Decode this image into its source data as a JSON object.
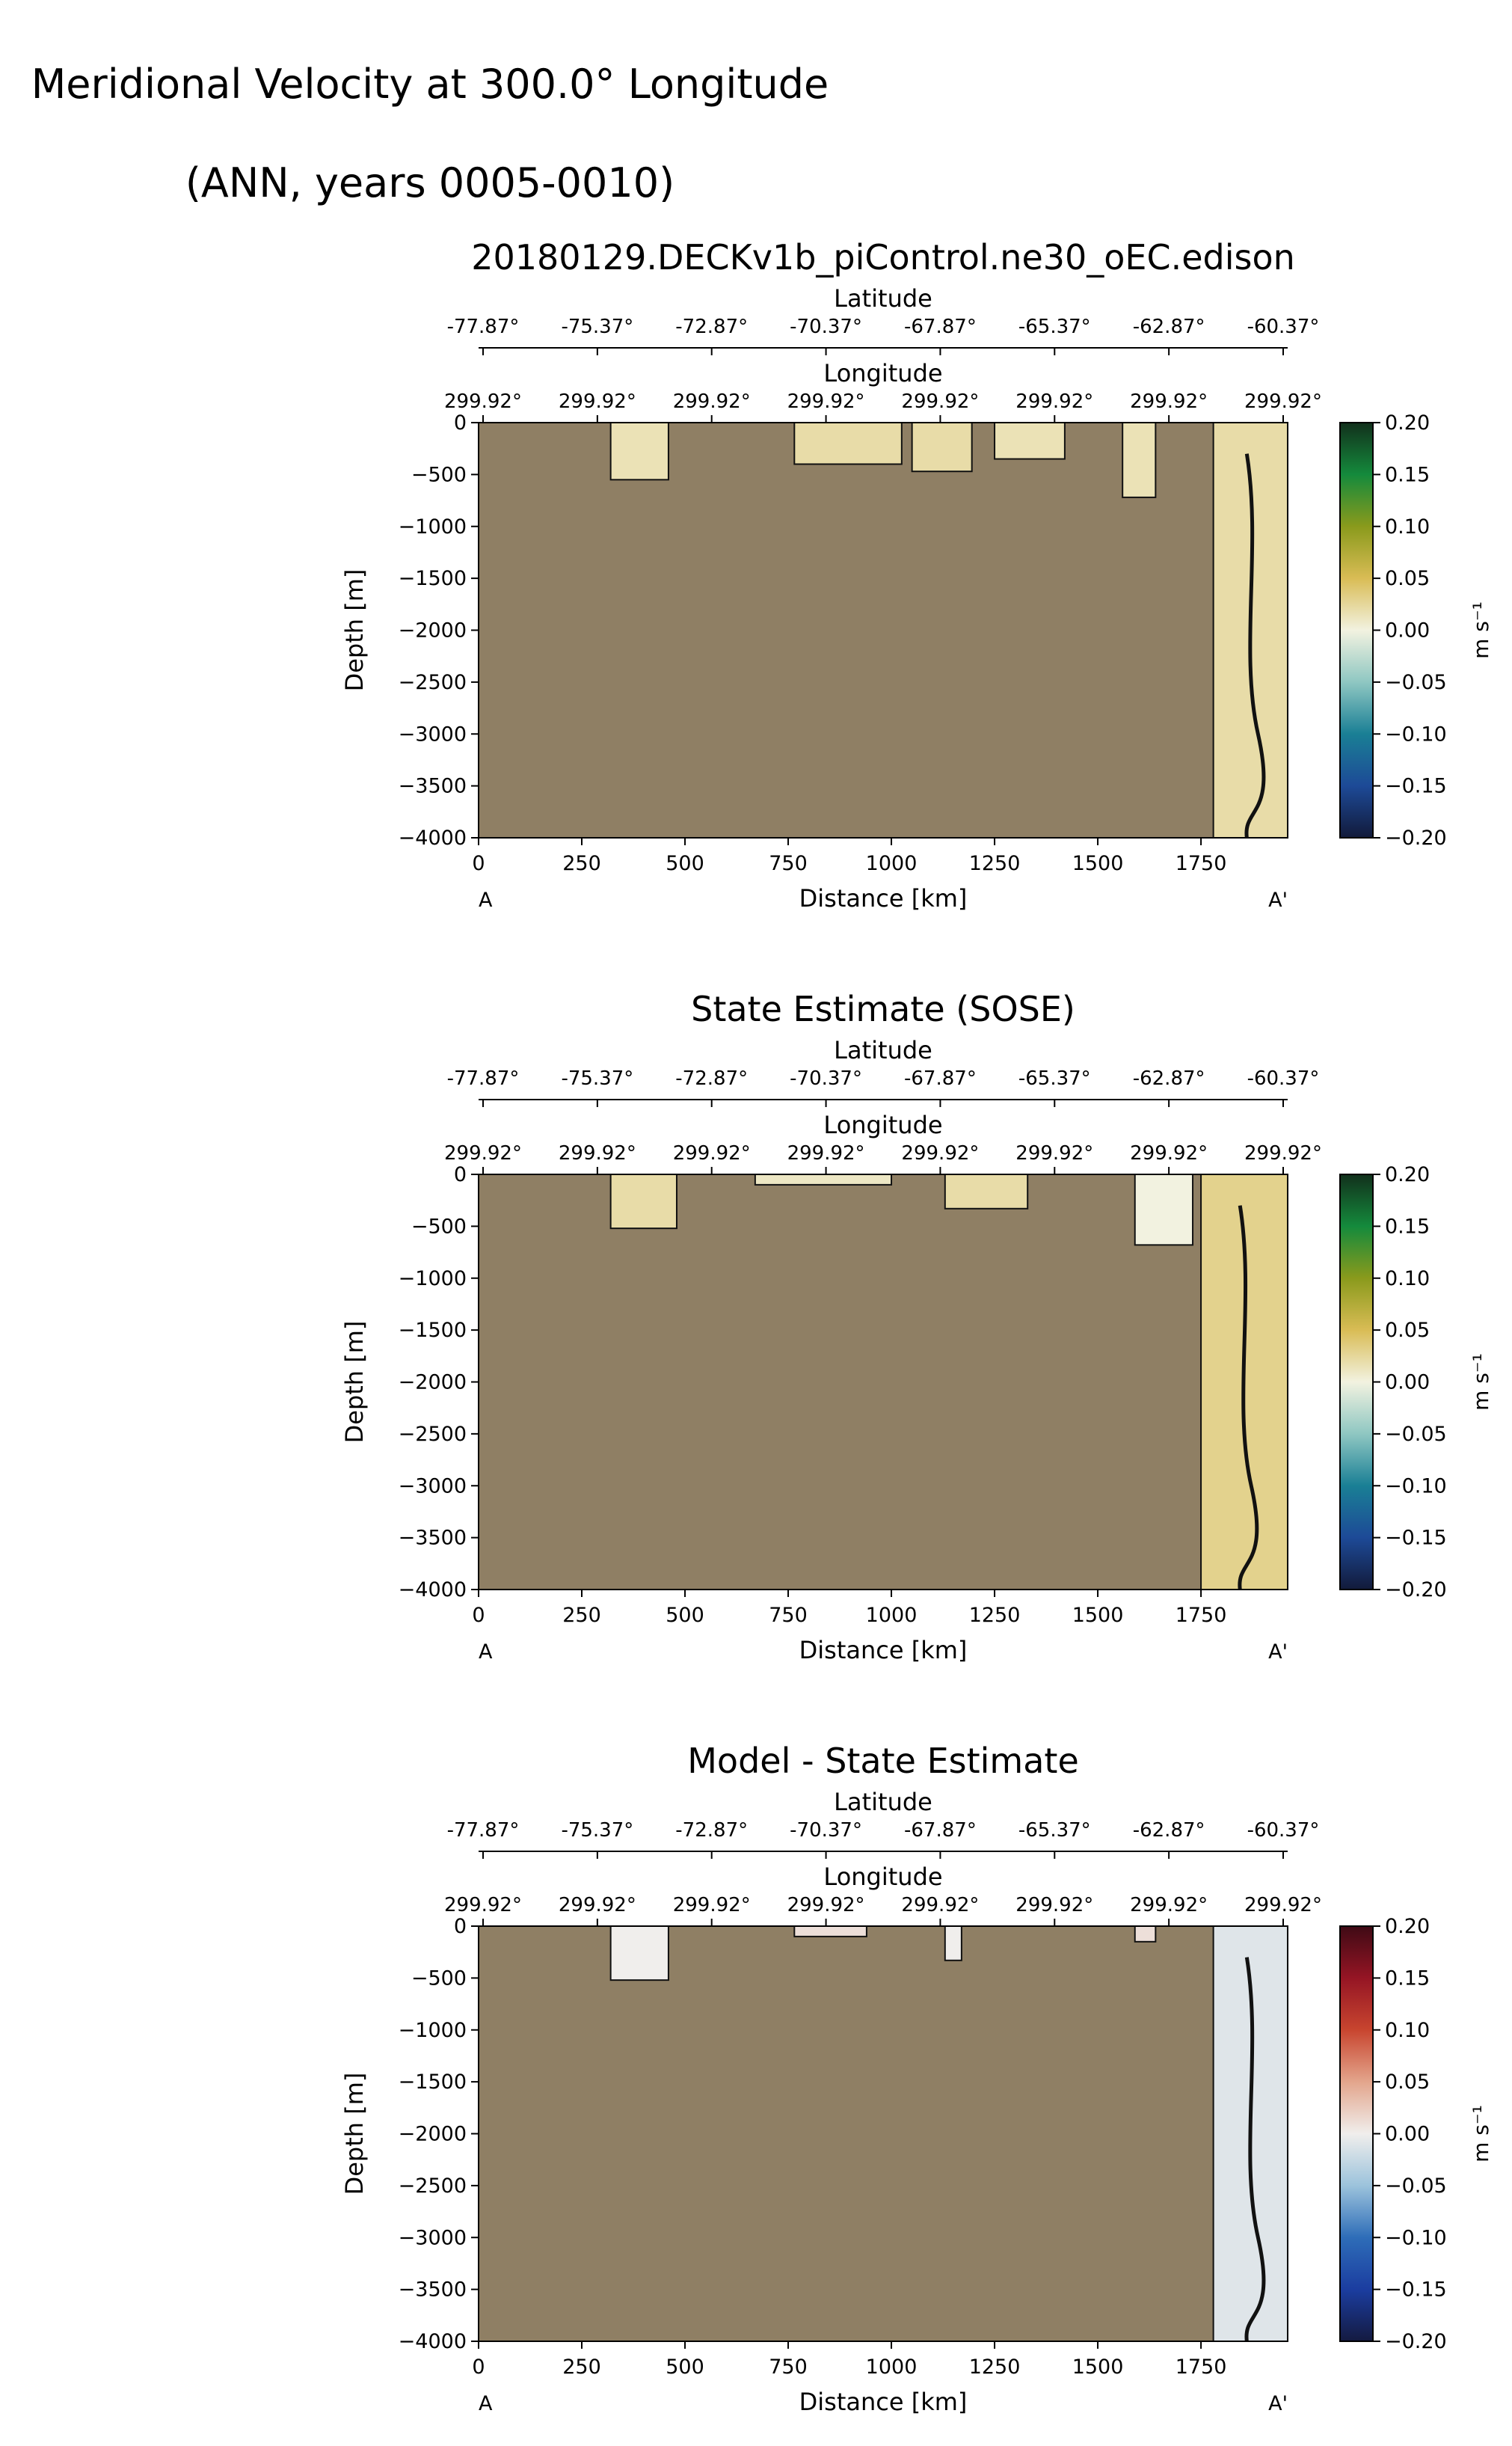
{
  "figure": {
    "title_line1": "Meridional Velocity at 300.0° Longitude",
    "title_line2": "(ANN, years 0005-0010)"
  },
  "colors": {
    "land": "#8f7f64",
    "contour": "#111111"
  },
  "chart_data": [
    {
      "type": "heatmap",
      "title": "20180129.DECKv1b_piControl.ne30_oEC.edison",
      "xlabel": "Distance [km]",
      "ylabel": "Depth [m]",
      "top_axis_1_label": "Latitude",
      "top_axis_2_label": "Longitude",
      "xlim": [
        0,
        1960
      ],
      "ylim": [
        -4000,
        0
      ],
      "x_ticks": [
        0,
        250,
        500,
        750,
        1000,
        1250,
        1500,
        1750
      ],
      "y_ticks": [
        0,
        -500,
        -1000,
        -1500,
        -2000,
        -2500,
        -3000,
        -3500,
        -4000
      ],
      "latitude_ticks": [
        "-77.87°",
        "-75.37°",
        "-72.87°",
        "-70.37°",
        "-67.87°",
        "-65.37°",
        "-62.87°",
        "-60.37°"
      ],
      "longitude_ticks": [
        "299.92°",
        "299.92°",
        "299.92°",
        "299.92°",
        "299.92°",
        "299.92°",
        "299.92°",
        "299.92°"
      ],
      "endpoint_labels": [
        "A",
        "A'"
      ],
      "colorbar": {
        "label": "m s⁻¹",
        "range": [
          -0.2,
          0.2
        ],
        "ticks": [
          "0.20",
          "0.15",
          "0.10",
          "0.05",
          "0.00",
          "−0.05",
          "−0.10",
          "−0.15",
          "−0.20"
        ],
        "colormap": [
          "#f2f2e0",
          "#d9bc55",
          "#8a9a1c",
          "#148a3c",
          "#12301c"
        ],
        "colormap_negative": [
          "#f2f2e0",
          "#8fc7c2",
          "#1a7f95",
          "#1d4a97",
          "#121a3a"
        ]
      },
      "ocean_regions": [
        {
          "x": [
            320,
            460
          ],
          "depth": [
            0,
            -550
          ],
          "value": 0.015
        },
        {
          "x": [
            765,
            1025
          ],
          "depth": [
            0,
            -400
          ],
          "value": 0.02
        },
        {
          "x": [
            1050,
            1195
          ],
          "depth": [
            0,
            -470
          ],
          "value": 0.02
        },
        {
          "x": [
            1250,
            1420
          ],
          "depth": [
            0,
            -350
          ],
          "value": 0.015
        },
        {
          "x": [
            1560,
            1640
          ],
          "depth": [
            0,
            -720
          ],
          "value": 0.015
        },
        {
          "x": [
            1780,
            1960
          ],
          "depth": [
            0,
            -4000
          ],
          "value": 0.02
        }
      ]
    },
    {
      "type": "heatmap",
      "title": "State Estimate (SOSE)",
      "xlabel": "Distance [km]",
      "ylabel": "Depth [m]",
      "top_axis_1_label": "Latitude",
      "top_axis_2_label": "Longitude",
      "xlim": [
        0,
        1960
      ],
      "ylim": [
        -4000,
        0
      ],
      "x_ticks": [
        0,
        250,
        500,
        750,
        1000,
        1250,
        1500,
        1750
      ],
      "y_ticks": [
        0,
        -500,
        -1000,
        -1500,
        -2000,
        -2500,
        -3000,
        -3500,
        -4000
      ],
      "latitude_ticks": [
        "-77.87°",
        "-75.37°",
        "-72.87°",
        "-70.37°",
        "-67.87°",
        "-65.37°",
        "-62.87°",
        "-60.37°"
      ],
      "longitude_ticks": [
        "299.92°",
        "299.92°",
        "299.92°",
        "299.92°",
        "299.92°",
        "299.92°",
        "299.92°",
        "299.92°"
      ],
      "endpoint_labels": [
        "A",
        "A'"
      ],
      "colorbar": {
        "label": "m s⁻¹",
        "range": [
          -0.2,
          0.2
        ],
        "ticks": [
          "0.20",
          "0.15",
          "0.10",
          "0.05",
          "0.00",
          "−0.05",
          "−0.10",
          "−0.15",
          "−0.20"
        ],
        "colormap": [
          "#f2f2e0",
          "#d9bc55",
          "#8a9a1c",
          "#148a3c",
          "#12301c"
        ],
        "colormap_negative": [
          "#f2f2e0",
          "#8fc7c2",
          "#1a7f95",
          "#1d4a97",
          "#121a3a"
        ]
      },
      "ocean_regions": [
        {
          "x": [
            320,
            480
          ],
          "depth": [
            0,
            -520
          ],
          "value": 0.02
        },
        {
          "x": [
            670,
            1000
          ],
          "depth": [
            0,
            -100
          ],
          "value": 0.01
        },
        {
          "x": [
            1130,
            1330
          ],
          "depth": [
            0,
            -330
          ],
          "value": 0.02
        },
        {
          "x": [
            1590,
            1730
          ],
          "depth": [
            0,
            -680
          ],
          "value": 0.0
        },
        {
          "x": [
            1750,
            1960
          ],
          "depth": [
            0,
            -4000
          ],
          "value": 0.03
        }
      ]
    },
    {
      "type": "heatmap",
      "title": "Model - State Estimate",
      "xlabel": "Distance [km]",
      "ylabel": "Depth [m]",
      "top_axis_1_label": "Latitude",
      "top_axis_2_label": "Longitude",
      "xlim": [
        0,
        1960
      ],
      "ylim": [
        -4000,
        0
      ],
      "x_ticks": [
        0,
        250,
        500,
        750,
        1000,
        1250,
        1500,
        1750
      ],
      "y_ticks": [
        0,
        -500,
        -1000,
        -1500,
        -2000,
        -2500,
        -3000,
        -3500,
        -4000
      ],
      "latitude_ticks": [
        "-77.87°",
        "-75.37°",
        "-72.87°",
        "-70.37°",
        "-67.87°",
        "-65.37°",
        "-62.87°",
        "-60.37°"
      ],
      "longitude_ticks": [
        "299.92°",
        "299.92°",
        "299.92°",
        "299.92°",
        "299.92°",
        "299.92°",
        "299.92°",
        "299.92°"
      ],
      "endpoint_labels": [
        "A",
        "A'"
      ],
      "colorbar": {
        "label": "m s⁻¹",
        "range": [
          -0.2,
          0.2
        ],
        "ticks": [
          "0.20",
          "0.15",
          "0.10",
          "0.05",
          "0.00",
          "−0.05",
          "−0.10",
          "−0.15",
          "−0.20"
        ],
        "colormap": [
          "#f0eeec",
          "#e3a58c",
          "#c8452f",
          "#951524",
          "#3f0a15"
        ],
        "colormap_negative": [
          "#f0eeec",
          "#9cc3dc",
          "#2e6db8",
          "#1b3da0",
          "#141a40"
        ]
      },
      "ocean_regions": [
        {
          "x": [
            320,
            460
          ],
          "depth": [
            0,
            -520
          ],
          "value": 0.0
        },
        {
          "x": [
            765,
            940
          ],
          "depth": [
            0,
            -100
          ],
          "value": 0.01
        },
        {
          "x": [
            1130,
            1170
          ],
          "depth": [
            0,
            -330
          ],
          "value": 0.0
        },
        {
          "x": [
            1590,
            1640
          ],
          "depth": [
            0,
            -150
          ],
          "value": 0.01
        },
        {
          "x": [
            1780,
            1960
          ],
          "depth": [
            0,
            -4000
          ],
          "value": -0.01
        }
      ]
    }
  ]
}
